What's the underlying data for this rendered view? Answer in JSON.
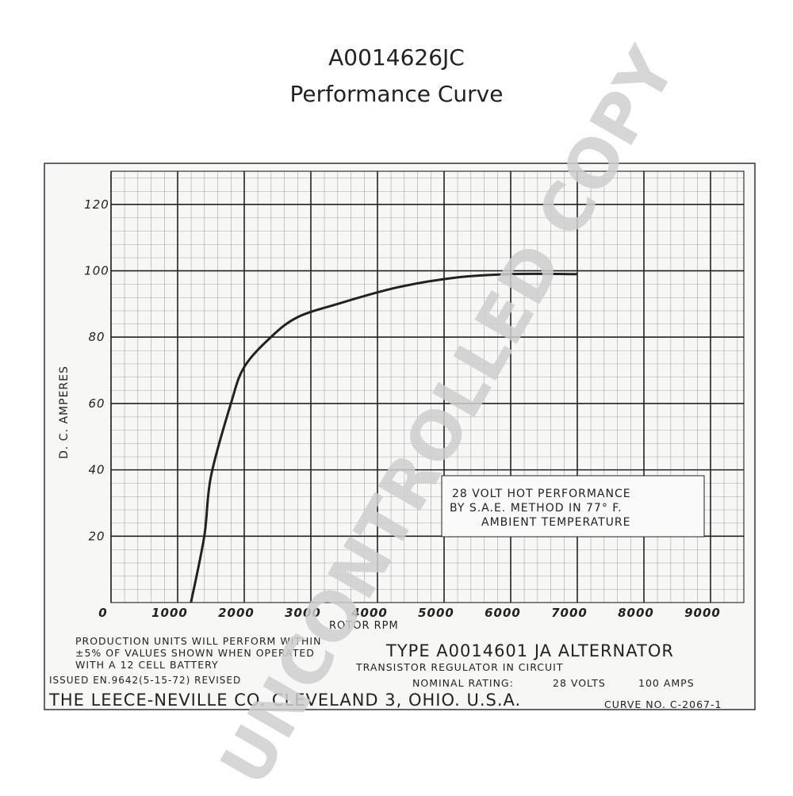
{
  "title": "A0014626JC",
  "subtitle": "Performance Curve",
  "chart_data": {
    "type": "line",
    "x_label": "ROTOR RPM",
    "y_label": "D. C. AMPERES",
    "x": [
      1200,
      1400,
      1500,
      1800,
      2000,
      2400,
      2800,
      3400,
      4300,
      5200,
      6000,
      7000
    ],
    "series": [
      {
        "name": "28 VOLT HOT PERFORMANCE",
        "color": "#222222",
        "values": [
          0,
          20,
          38,
          60,
          71,
          80,
          86,
          90,
          95,
          98,
          99,
          99
        ]
      }
    ],
    "xlim": [
      0,
      9500
    ],
    "ylim": [
      0,
      130
    ],
    "xticks": [
      0,
      1000,
      2000,
      3000,
      4000,
      5000,
      6000,
      7000,
      8000,
      9000
    ],
    "yticks": [
      20,
      40,
      60,
      80,
      100,
      120
    ],
    "grid": true,
    "annotation": [
      "28 VOLT HOT PERFORMANCE",
      "BY S.A.E. METHOD IN 77° F.",
      "AMBIENT TEMPERATURE"
    ]
  },
  "footer": {
    "note": [
      "PRODUCTION UNITS WILL PERFORM WITHIN",
      "±5% OF VALUES SHOWN WHEN OPERATED",
      "WITH A 12 CELL BATTERY"
    ],
    "type": "TYPE A0014601 JA ALTERNATOR",
    "regulator": "TRANSISTOR REGULATOR IN CIRCUIT",
    "issued": "ISSUED EN.9642(5-15-72) REVISED",
    "rating_label": "NOMINAL RATING:",
    "volts": "28 VOLTS",
    "amps": "100 AMPS",
    "company": "THE LEECE-NEVILLE CO. CLEVELAND 3, OHIO. U.S.A.",
    "curve_no": "CURVE NO. C-2067-1"
  },
  "watermark": "UNCONTROLLED COPY"
}
